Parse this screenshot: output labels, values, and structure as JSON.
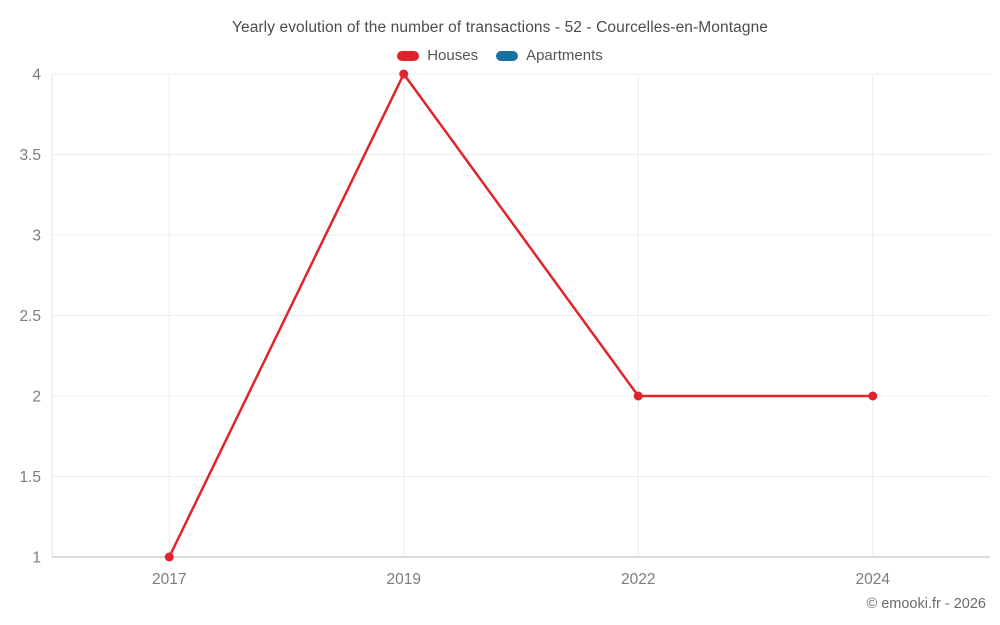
{
  "chart_data": {
    "type": "line",
    "title": "Yearly evolution of the number of transactions - 52 - Courcelles-en-Montagne",
    "categories": [
      "2017",
      "2019",
      "2022",
      "2024"
    ],
    "series": [
      {
        "name": "Houses",
        "color": "#e0242b",
        "values": [
          1,
          4,
          2,
          2
        ]
      },
      {
        "name": "Apartments",
        "color": "#15719f",
        "values": []
      }
    ],
    "xlabel": "",
    "ylabel": "",
    "ylim": [
      1,
      4
    ],
    "yticks": [
      1,
      1.5,
      2,
      2.5,
      3,
      3.5,
      4
    ],
    "grid": true,
    "legend_position": "top"
  },
  "footer": {
    "copyright": "© emooki.fr - 2026"
  }
}
